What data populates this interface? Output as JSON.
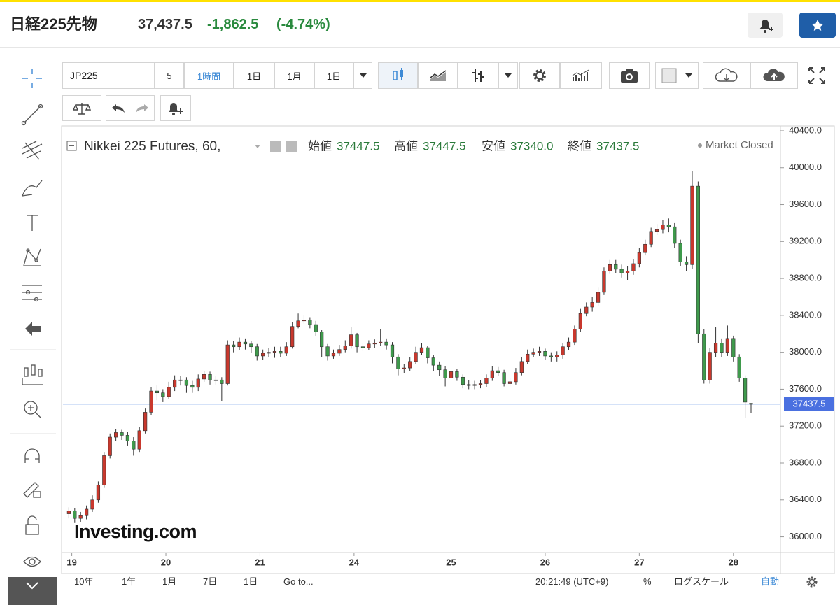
{
  "header": {
    "title": "日経225先物",
    "price": "37,437.5",
    "change": "-1,862.5",
    "change_pct": "(-4.74%)"
  },
  "toolbar": {
    "symbol": "JP225",
    "intervals": [
      "5",
      "1時間",
      "1日",
      "1月",
      "1日"
    ]
  },
  "footer": {
    "ranges": [
      "10年",
      "1年",
      "1月",
      "7日",
      "1日"
    ],
    "goto": "Go to...",
    "time": "20:21:49 (UTC+9)",
    "percent": "%",
    "log": "ログスケール",
    "auto": "自動"
  },
  "chart_data": {
    "type": "candlestick",
    "title": "Nikkei 225 Futures, 60,",
    "status": "Market Closed",
    "watermark": "Investing.com",
    "ohlc_legend": [
      {
        "label": "始値",
        "value": "37447.5"
      },
      {
        "label": "高値",
        "value": "37447.5"
      },
      {
        "label": "安値",
        "value": "37340.0"
      },
      {
        "label": "終値",
        "value": "37437.5"
      }
    ],
    "up_color": "#c9382d",
    "down_color": "#3f9a4c",
    "last_price": 37437.5,
    "xlim": [
      -1,
      121
    ],
    "xticks": [
      {
        "value": 0.5,
        "label": "19"
      },
      {
        "value": 16.5,
        "label": "20"
      },
      {
        "value": 32.5,
        "label": "21"
      },
      {
        "value": 48.5,
        "label": "24"
      },
      {
        "value": 65,
        "label": "25"
      },
      {
        "value": 81,
        "label": "26"
      },
      {
        "value": 97,
        "label": "27"
      },
      {
        "value": 113,
        "label": "28"
      }
    ],
    "ylim": [
      35830,
      40430
    ],
    "yticks": [
      {
        "value": 36000,
        "label": "36000.0"
      },
      {
        "value": 36400,
        "label": "36400.0"
      },
      {
        "value": 36800,
        "label": "36800.0"
      },
      {
        "value": 37200,
        "label": "37200.0"
      },
      {
        "value": 37600,
        "label": "37600.0"
      },
      {
        "value": 38000,
        "label": "38000.0"
      },
      {
        "value": 38400,
        "label": "38400.0"
      },
      {
        "value": 38800,
        "label": "38800.0"
      },
      {
        "value": 39200,
        "label": "39200.0"
      },
      {
        "value": 39600,
        "label": "39600.0"
      },
      {
        "value": 40000,
        "label": "40000.0"
      },
      {
        "value": 40400,
        "label": "40400.0"
      }
    ],
    "open": [
      36250,
      36280,
      36200,
      36230,
      36300,
      36400,
      36560,
      36880,
      37080,
      37130,
      37100,
      37040,
      36950,
      37150,
      37350,
      37580,
      37560,
      37520,
      37620,
      37700,
      37700,
      37640,
      37620,
      37710,
      37760,
      37700,
      37700,
      37660,
      38080,
      38060,
      38110,
      38090,
      38060,
      37960,
      37990,
      38000,
      38010,
      37990,
      38060,
      38280,
      38340,
      38350,
      38300,
      38220,
      38060,
      37960,
      37990,
      38030,
      38070,
      38190,
      38060,
      38050,
      38090,
      38100,
      38110,
      38080,
      37950,
      37820,
      37830,
      37900,
      38000,
      38050,
      37940,
      37860,
      37810,
      37720,
      37790,
      37730,
      37650,
      37640,
      37650,
      37660,
      37720,
      37800,
      37780,
      37660,
      37680,
      37780,
      37900,
      37980,
      38000,
      38010,
      37960,
      37950,
      37970,
      38060,
      38110,
      38250,
      38420,
      38490,
      38540,
      38650,
      38880,
      38950,
      38900,
      38860,
      38880,
      38960,
      39080,
      39170,
      39310,
      39330,
      39380,
      39360,
      39180,
      38980,
      38950,
      39800,
      38200,
      37700,
      38000,
      38100,
      38000,
      38150,
      37950,
      37720,
      37447.5
    ],
    "high": [
      36320,
      36310,
      36270,
      36340,
      36450,
      36600,
      36920,
      37120,
      37170,
      37160,
      37140,
      37080,
      37190,
      37390,
      37620,
      37640,
      37600,
      37680,
      37750,
      37740,
      37730,
      37690,
      37760,
      37800,
      37790,
      37740,
      37730,
      38130,
      38120,
      38160,
      38150,
      38120,
      38090,
      38030,
      38050,
      38060,
      38060,
      38110,
      38330,
      38420,
      38400,
      38380,
      38340,
      38240,
      38090,
      38030,
      38080,
      38130,
      38270,
      38210,
      38100,
      38130,
      38140,
      38250,
      38150,
      38110,
      37980,
      37870,
      37950,
      38060,
      38100,
      38070,
      37970,
      37900,
      37850,
      37830,
      37820,
      37760,
      37700,
      37690,
      37700,
      37760,
      37850,
      37840,
      37810,
      37720,
      37830,
      37950,
      38030,
      38040,
      38060,
      38040,
      38000,
      38010,
      38100,
      38160,
      38290,
      38470,
      38540,
      38600,
      38700,
      38920,
      39000,
      39000,
      38950,
      38930,
      39010,
      39130,
      39220,
      39350,
      39390,
      39430,
      39450,
      39400,
      39220,
      39040,
      39960,
      39850,
      38250,
      38050,
      38270,
      38150,
      38290,
      38180,
      37980,
      37750,
      37447.5
    ],
    "low": [
      36200,
      36150,
      36160,
      36190,
      36270,
      36370,
      36530,
      36850,
      37040,
      37050,
      36990,
      36880,
      36920,
      37120,
      37320,
      37480,
      37460,
      37490,
      37580,
      37640,
      37560,
      37560,
      37580,
      37680,
      37650,
      37650,
      37470,
      37640,
      38000,
      38020,
      38030,
      37990,
      37910,
      37920,
      37950,
      37940,
      37950,
      37960,
      38040,
      38260,
      38310,
      38260,
      38180,
      37950,
      37910,
      37930,
      37960,
      38000,
      38040,
      38000,
      38010,
      38020,
      38050,
      38070,
      38030,
      37880,
      37750,
      37770,
      37800,
      37870,
      37970,
      37880,
      37800,
      37740,
      37630,
      37510,
      37690,
      37610,
      37600,
      37600,
      37610,
      37620,
      37690,
      37740,
      37630,
      37630,
      37650,
      37750,
      37870,
      37950,
      37960,
      37920,
      37900,
      37900,
      37930,
      38020,
      38080,
      38220,
      38390,
      38440,
      38500,
      38620,
      38850,
      38860,
      38810,
      38780,
      38840,
      38920,
      39050,
      39140,
      39270,
      39290,
      39300,
      39130,
      38930,
      38880,
      38900,
      38100,
      37660,
      37660,
      37950,
      37950,
      37960,
      37900,
      37680,
      37290,
      37340
    ],
    "close": [
      36280,
      36200,
      36230,
      36300,
      36400,
      36560,
      36880,
      37080,
      37130,
      37100,
      37040,
      36950,
      37150,
      37350,
      37580,
      37560,
      37520,
      37620,
      37700,
      37700,
      37640,
      37620,
      37710,
      37760,
      37700,
      37700,
      37660,
      38080,
      38060,
      38110,
      38090,
      38060,
      37960,
      37990,
      38000,
      38010,
      37990,
      38060,
      38280,
      38340,
      38350,
      38300,
      38220,
      38060,
      37960,
      37990,
      38030,
      38070,
      38190,
      38060,
      38050,
      38090,
      38100,
      38110,
      38080,
      37950,
      37820,
      37830,
      37900,
      38000,
      38050,
      37940,
      37860,
      37810,
      37720,
      37790,
      37730,
      37650,
      37640,
      37650,
      37660,
      37720,
      37800,
      37780,
      37660,
      37680,
      37780,
      37900,
      37980,
      38000,
      38010,
      37960,
      37950,
      37970,
      38060,
      38110,
      38250,
      38420,
      38490,
      38540,
      38650,
      38880,
      38950,
      38900,
      38860,
      38880,
      38960,
      39080,
      39170,
      39310,
      39330,
      39380,
      39360,
      39180,
      38980,
      38950,
      39800,
      38200,
      37700,
      38000,
      38100,
      38000,
      38150,
      37950,
      37720,
      37460,
      37437.5
    ]
  }
}
